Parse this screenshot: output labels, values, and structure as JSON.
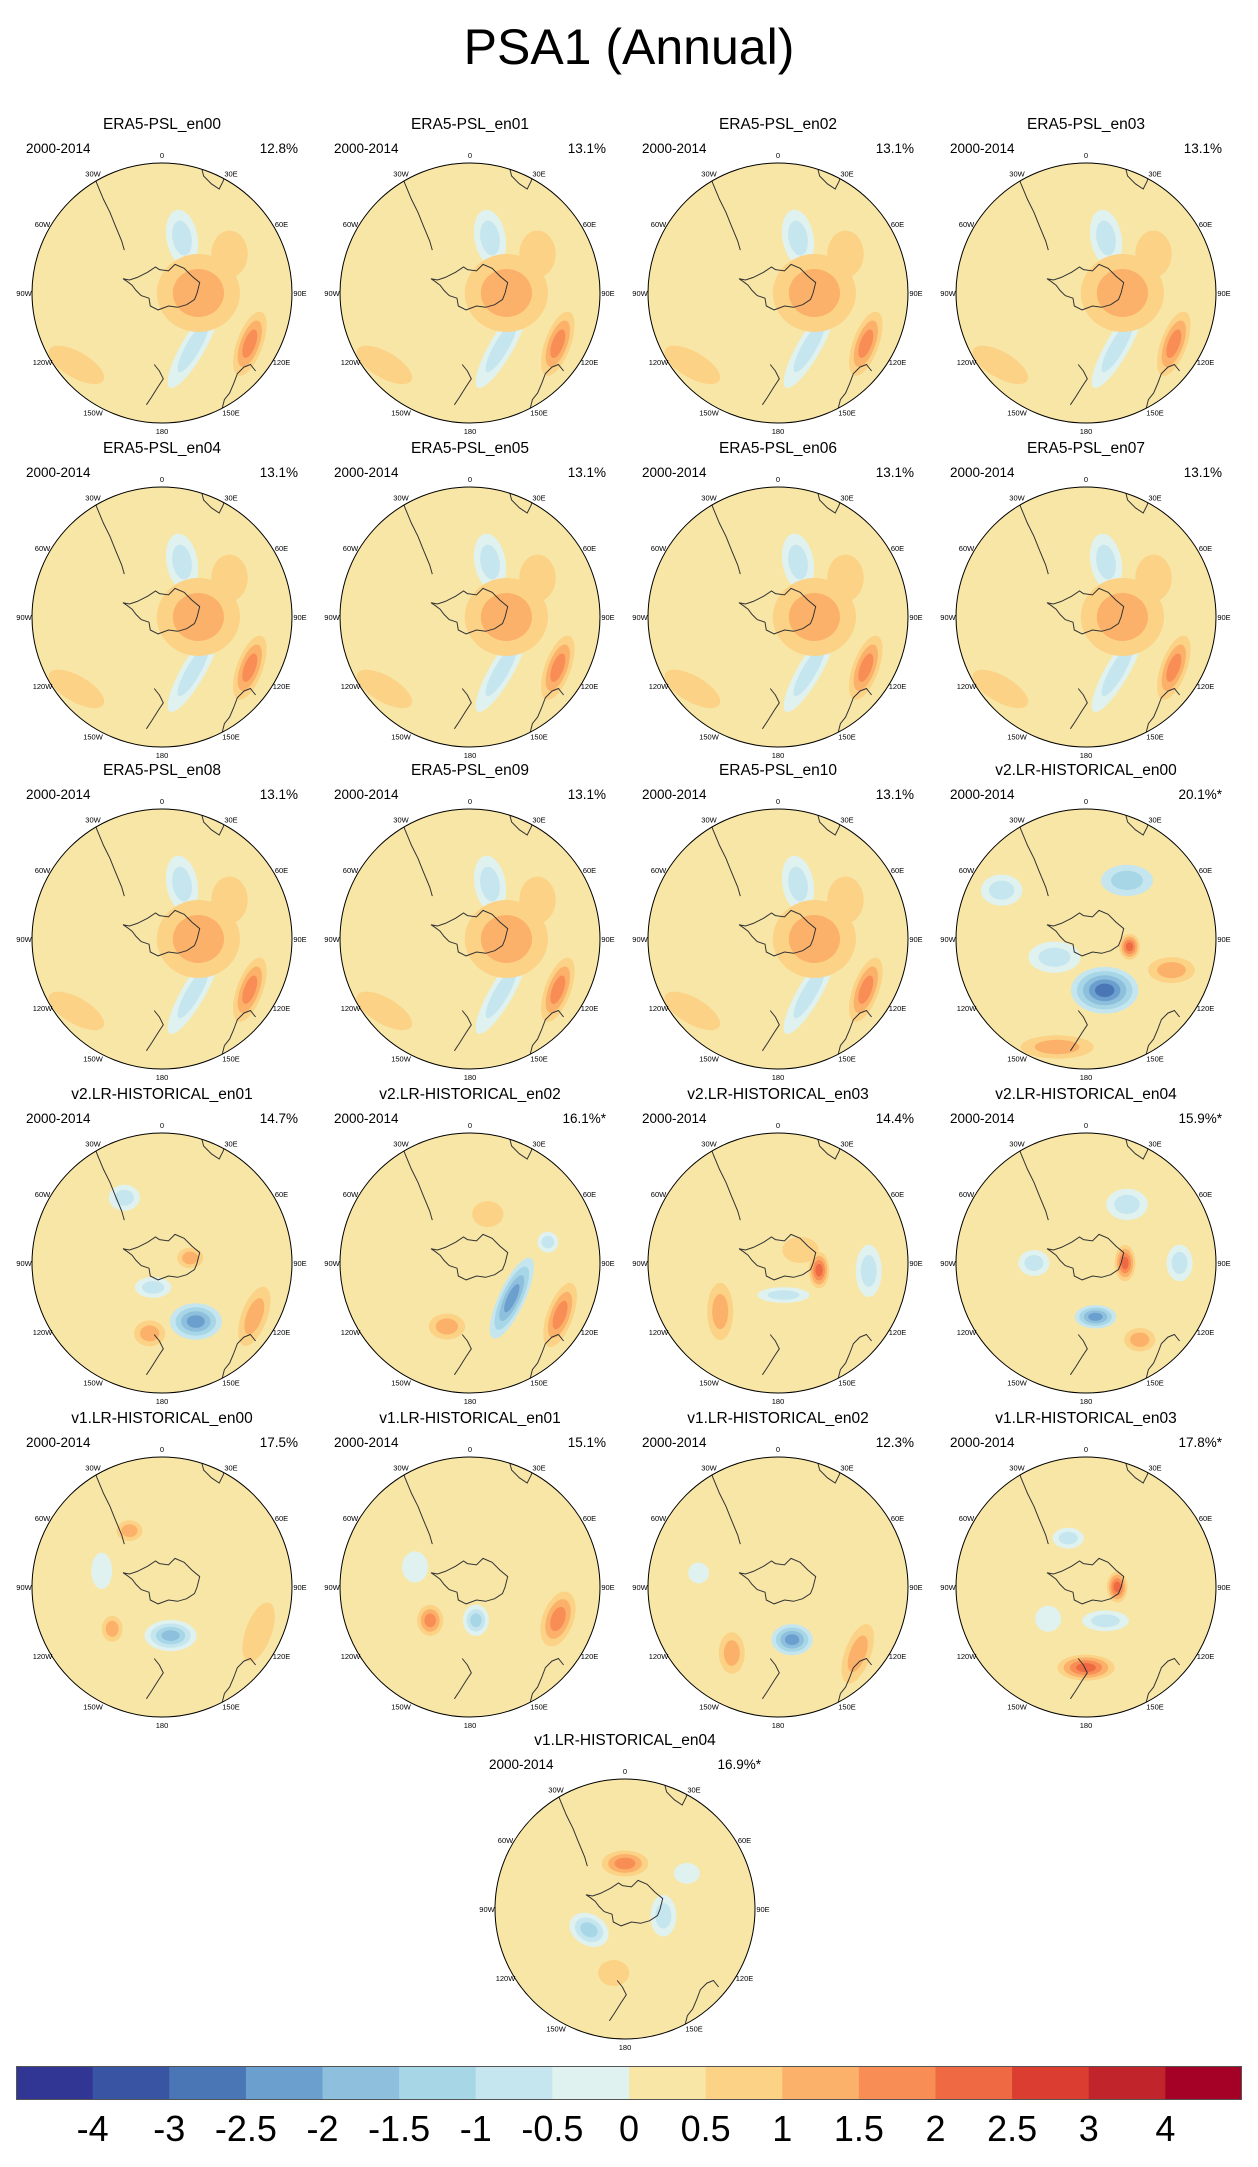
{
  "title": "PSA1 (Annual)",
  "period_label": "2000-2014",
  "lon_labels": [
    "0",
    "30E",
    "60E",
    "90E",
    "120E",
    "150E",
    "180",
    "150W",
    "120W",
    "90W",
    "60W",
    "30W"
  ],
  "chart_data": {
    "type": "map-panels",
    "projection": "south polar stereographic",
    "field": "PSA1 sea level pressure pattern (annual)",
    "panels": [
      {
        "title": "ERA5-PSL_en00",
        "period": "2000-2014",
        "variance": "12.8%",
        "pattern": "era5"
      },
      {
        "title": "ERA5-PSL_en01",
        "period": "2000-2014",
        "variance": "13.1%",
        "pattern": "era5"
      },
      {
        "title": "ERA5-PSL_en02",
        "period": "2000-2014",
        "variance": "13.1%",
        "pattern": "era5"
      },
      {
        "title": "ERA5-PSL_en03",
        "period": "2000-2014",
        "variance": "13.1%",
        "pattern": "era5"
      },
      {
        "title": "ERA5-PSL_en04",
        "period": "2000-2014",
        "variance": "13.1%",
        "pattern": "era5"
      },
      {
        "title": "ERA5-PSL_en05",
        "period": "2000-2014",
        "variance": "13.1%",
        "pattern": "era5"
      },
      {
        "title": "ERA5-PSL_en06",
        "period": "2000-2014",
        "variance": "13.1%",
        "pattern": "era5"
      },
      {
        "title": "ERA5-PSL_en07",
        "period": "2000-2014",
        "variance": "13.1%",
        "pattern": "era5"
      },
      {
        "title": "ERA5-PSL_en08",
        "period": "2000-2014",
        "variance": "13.1%",
        "pattern": "era5"
      },
      {
        "title": "ERA5-PSL_en09",
        "period": "2000-2014",
        "variance": "13.1%",
        "pattern": "era5"
      },
      {
        "title": "ERA5-PSL_en10",
        "period": "2000-2014",
        "variance": "13.1%",
        "pattern": "era5"
      },
      {
        "title": "v2.LR-HISTORICAL_en00",
        "period": "2000-2014",
        "variance": "20.1%*",
        "pattern": "v2en00"
      },
      {
        "title": "v2.LR-HISTORICAL_en01",
        "period": "2000-2014",
        "variance": "14.7%",
        "pattern": "v2en01"
      },
      {
        "title": "v2.LR-HISTORICAL_en02",
        "period": "2000-2014",
        "variance": "16.1%*",
        "pattern": "v2en02"
      },
      {
        "title": "v2.LR-HISTORICAL_en03",
        "period": "2000-2014",
        "variance": "14.4%",
        "pattern": "v2en03"
      },
      {
        "title": "v2.LR-HISTORICAL_en04",
        "period": "2000-2014",
        "variance": "15.9%*",
        "pattern": "v2en04"
      },
      {
        "title": "v1.LR-HISTORICAL_en00",
        "period": "2000-2014",
        "variance": "17.5%",
        "pattern": "v1en00"
      },
      {
        "title": "v1.LR-HISTORICAL_en01",
        "period": "2000-2014",
        "variance": "15.1%",
        "pattern": "v1en01"
      },
      {
        "title": "v1.LR-HISTORICAL_en02",
        "period": "2000-2014",
        "variance": "12.3%",
        "pattern": "v1en02"
      },
      {
        "title": "v1.LR-HISTORICAL_en03",
        "period": "2000-2014",
        "variance": "17.8%*",
        "pattern": "v1en03"
      },
      {
        "title": "v1.LR-HISTORICAL_en04",
        "period": "2000-2014",
        "variance": "16.9%*",
        "pattern": "v1en04"
      }
    ],
    "colorbar": {
      "levels": [
        "-4",
        "-3",
        "-2.5",
        "-2",
        "-1.5",
        "-1",
        "-0.5",
        "0",
        "0.5",
        "1",
        "1.5",
        "2",
        "2.5",
        "3",
        "4"
      ],
      "colors": [
        "#313695",
        "#3a54a4",
        "#4a76b5",
        "#6b9fcd",
        "#8ebfdc",
        "#a7d6e7",
        "#c6e6ef",
        "#e0f2ef",
        "#f8e6a6",
        "#fcd286",
        "#fbb169",
        "#f88d56",
        "#ef6942",
        "#db3d30",
        "#c2242b",
        "#a50026"
      ]
    }
  },
  "patterns": {
    "era5": {
      "base": 8,
      "blobs": [
        {
          "a": 120,
          "r": 0.78,
          "rx": 0.1,
          "ry": 0.26,
          "rot": 20,
          "levels": [
            9,
            10,
            11
          ]
        },
        {
          "a": 150,
          "r": 0.48,
          "rx": 0.09,
          "ry": 0.36,
          "rot": 30,
          "levels": [
            7,
            6
          ]
        },
        {
          "a": 20,
          "r": 0.45,
          "rx": 0.12,
          "ry": 0.22,
          "rot": -10,
          "levels": [
            7,
            6
          ]
        },
        {
          "a": 90,
          "r": 0.28,
          "rx": 0.32,
          "ry": 0.3,
          "rot": 0,
          "levels": [
            9,
            10
          ]
        },
        {
          "a": 60,
          "r": 0.6,
          "rx": 0.14,
          "ry": 0.18,
          "rot": 0,
          "levels": [
            9
          ]
        },
        {
          "a": 230,
          "r": 0.86,
          "rx": 0.24,
          "ry": 0.1,
          "rot": 30,
          "levels": [
            9
          ]
        }
      ]
    },
    "v2en00": {
      "base": 8,
      "blobs": [
        {
          "a": 35,
          "r": 0.55,
          "rx": 0.2,
          "ry": 0.12,
          "rot": 0,
          "levels": [
            6,
            5
          ]
        },
        {
          "a": 160,
          "r": 0.42,
          "rx": 0.26,
          "ry": 0.18,
          "rot": 0,
          "levels": [
            6,
            5,
            4,
            3,
            2
          ]
        },
        {
          "a": 100,
          "r": 0.34,
          "rx": 0.08,
          "ry": 0.1,
          "rot": 0,
          "levels": [
            9,
            10,
            11,
            12
          ]
        },
        {
          "a": 110,
          "r": 0.7,
          "rx": 0.18,
          "ry": 0.1,
          "rot": 0,
          "levels": [
            9,
            10
          ]
        },
        {
          "a": 240,
          "r": 0.28,
          "rx": 0.2,
          "ry": 0.12,
          "rot": 0,
          "levels": [
            7,
            6
          ]
        },
        {
          "a": 195,
          "r": 0.86,
          "rx": 0.28,
          "ry": 0.09,
          "rot": 0,
          "levels": [
            9,
            10
          ]
        },
        {
          "a": 300,
          "r": 0.75,
          "rx": 0.16,
          "ry": 0.12,
          "rot": 0,
          "levels": [
            7,
            6
          ]
        }
      ]
    },
    "v2en01": {
      "base": 8,
      "blobs": [
        {
          "a": 150,
          "r": 0.52,
          "rx": 0.2,
          "ry": 0.14,
          "rot": 0,
          "levels": [
            6,
            5,
            4,
            3
          ]
        },
        {
          "a": 120,
          "r": 0.82,
          "rx": 0.1,
          "ry": 0.24,
          "rot": 20,
          "levels": [
            9,
            10
          ]
        },
        {
          "a": 190,
          "r": 0.55,
          "rx": 0.12,
          "ry": 0.1,
          "rot": 0,
          "levels": [
            9,
            10
          ]
        },
        {
          "a": 80,
          "r": 0.22,
          "rx": 0.1,
          "ry": 0.08,
          "rot": 0,
          "levels": [
            9,
            10
          ]
        },
        {
          "a": 200,
          "r": 0.2,
          "rx": 0.14,
          "ry": 0.08,
          "rot": 0,
          "levels": [
            7,
            6
          ]
        },
        {
          "a": 330,
          "r": 0.58,
          "rx": 0.12,
          "ry": 0.1,
          "rot": 0,
          "levels": [
            7,
            6
          ]
        }
      ]
    },
    "v2en02": {
      "base": 8,
      "blobs": [
        {
          "a": 130,
          "r": 0.42,
          "rx": 0.1,
          "ry": 0.34,
          "rot": 25,
          "levels": [
            6,
            5,
            4,
            3
          ]
        },
        {
          "a": 120,
          "r": 0.8,
          "rx": 0.1,
          "ry": 0.26,
          "rot": 20,
          "levels": [
            9,
            10,
            11
          ]
        },
        {
          "a": 200,
          "r": 0.52,
          "rx": 0.14,
          "ry": 0.1,
          "rot": 0,
          "levels": [
            9,
            10
          ]
        },
        {
          "a": 75,
          "r": 0.62,
          "rx": 0.08,
          "ry": 0.08,
          "rot": 0,
          "levels": [
            7,
            6
          ]
        },
        {
          "a": 20,
          "r": 0.4,
          "rx": 0.12,
          "ry": 0.1,
          "rot": 0,
          "levels": [
            9
          ]
        }
      ]
    },
    "v2en03": {
      "base": 8,
      "blobs": [
        {
          "a": 100,
          "r": 0.32,
          "rx": 0.08,
          "ry": 0.14,
          "rot": 0,
          "levels": [
            9,
            10,
            11,
            12
          ]
        },
        {
          "a": 95,
          "r": 0.7,
          "rx": 0.1,
          "ry": 0.2,
          "rot": 0,
          "levels": [
            7,
            6
          ]
        },
        {
          "a": 170,
          "r": 0.25,
          "rx": 0.2,
          "ry": 0.06,
          "rot": 0,
          "levels": [
            7,
            6
          ]
        },
        {
          "a": 230,
          "r": 0.58,
          "rx": 0.1,
          "ry": 0.22,
          "rot": 0,
          "levels": [
            9,
            10
          ]
        },
        {
          "a": 60,
          "r": 0.2,
          "rx": 0.14,
          "ry": 0.1,
          "rot": 0,
          "levels": [
            9
          ]
        }
      ]
    },
    "v2en04": {
      "base": 8,
      "blobs": [
        {
          "a": 90,
          "r": 0.3,
          "rx": 0.08,
          "ry": 0.14,
          "rot": 0,
          "levels": [
            9,
            10,
            11,
            12
          ]
        },
        {
          "a": 170,
          "r": 0.42,
          "rx": 0.16,
          "ry": 0.09,
          "rot": 0,
          "levels": [
            6,
            5,
            4,
            3
          ]
        },
        {
          "a": 90,
          "r": 0.72,
          "rx": 0.1,
          "ry": 0.14,
          "rot": 0,
          "levels": [
            7,
            6
          ]
        },
        {
          "a": 35,
          "r": 0.55,
          "rx": 0.16,
          "ry": 0.12,
          "rot": 0,
          "levels": [
            7,
            6
          ]
        },
        {
          "a": 270,
          "r": 0.4,
          "rx": 0.12,
          "ry": 0.1,
          "rot": 0,
          "levels": [
            7,
            6
          ]
        },
        {
          "a": 145,
          "r": 0.72,
          "rx": 0.12,
          "ry": 0.09,
          "rot": 0,
          "levels": [
            9,
            10
          ]
        }
      ]
    },
    "v1en00": {
      "base": 8,
      "blobs": [
        {
          "a": 170,
          "r": 0.38,
          "rx": 0.2,
          "ry": 0.12,
          "rot": 0,
          "levels": [
            7,
            6,
            5,
            4
          ]
        },
        {
          "a": 285,
          "r": 0.48,
          "rx": 0.08,
          "ry": 0.14,
          "rot": 0,
          "levels": [
            7
          ]
        },
        {
          "a": 330,
          "r": 0.5,
          "rx": 0.1,
          "ry": 0.08,
          "rot": 0,
          "levels": [
            9,
            10
          ]
        },
        {
          "a": 115,
          "r": 0.82,
          "rx": 0.1,
          "ry": 0.24,
          "rot": 20,
          "levels": [
            9
          ]
        },
        {
          "a": 230,
          "r": 0.5,
          "rx": 0.08,
          "ry": 0.1,
          "rot": 0,
          "levels": [
            9,
            10
          ]
        }
      ]
    },
    "v1en01": {
      "base": 8,
      "blobs": [
        {
          "a": 170,
          "r": 0.26,
          "rx": 0.1,
          "ry": 0.12,
          "rot": 0,
          "levels": [
            7,
            6,
            5
          ]
        },
        {
          "a": 110,
          "r": 0.72,
          "rx": 0.12,
          "ry": 0.22,
          "rot": 20,
          "levels": [
            9,
            10,
            11
          ]
        },
        {
          "a": 230,
          "r": 0.4,
          "rx": 0.1,
          "ry": 0.12,
          "rot": 0,
          "levels": [
            9,
            10,
            11
          ]
        },
        {
          "a": 290,
          "r": 0.45,
          "rx": 0.1,
          "ry": 0.12,
          "rot": 0,
          "levels": [
            7
          ]
        }
      ]
    },
    "v1en02": {
      "base": 8,
      "blobs": [
        {
          "a": 165,
          "r": 0.42,
          "rx": 0.16,
          "ry": 0.12,
          "rot": 0,
          "levels": [
            6,
            5,
            4,
            3
          ]
        },
        {
          "a": 130,
          "r": 0.8,
          "rx": 0.1,
          "ry": 0.24,
          "rot": 20,
          "levels": [
            9,
            10
          ]
        },
        {
          "a": 215,
          "r": 0.62,
          "rx": 0.1,
          "ry": 0.16,
          "rot": 0,
          "levels": [
            9,
            10
          ]
        },
        {
          "a": 280,
          "r": 0.62,
          "rx": 0.08,
          "ry": 0.08,
          "rot": 0,
          "levels": [
            7
          ]
        }
      ]
    },
    "v1en03": {
      "base": 8,
      "blobs": [
        {
          "a": 90,
          "r": 0.24,
          "rx": 0.08,
          "ry": 0.12,
          "rot": 0,
          "levels": [
            9,
            10,
            11,
            12
          ]
        },
        {
          "a": 180,
          "r": 0.62,
          "rx": 0.22,
          "ry": 0.1,
          "rot": 0,
          "levels": [
            9,
            10,
            11,
            12
          ]
        },
        {
          "a": 340,
          "r": 0.4,
          "rx": 0.12,
          "ry": 0.08,
          "rot": 0,
          "levels": [
            7,
            6
          ]
        },
        {
          "a": 150,
          "r": 0.3,
          "rx": 0.18,
          "ry": 0.08,
          "rot": 0,
          "levels": [
            7,
            6
          ]
        },
        {
          "a": 230,
          "r": 0.38,
          "rx": 0.1,
          "ry": 0.1,
          "rot": 0,
          "levels": [
            7
          ]
        }
      ]
    },
    "v1en04": {
      "base": 8,
      "blobs": [
        {
          "a": 100,
          "r": 0.3,
          "rx": 0.1,
          "ry": 0.16,
          "rot": 0,
          "levels": [
            7,
            6
          ]
        },
        {
          "a": 240,
          "r": 0.32,
          "rx": 0.16,
          "ry": 0.12,
          "rot": 30,
          "levels": [
            7,
            6,
            5
          ]
        },
        {
          "a": 0,
          "r": 0.35,
          "rx": 0.18,
          "ry": 0.1,
          "rot": 0,
          "levels": [
            9,
            10,
            11
          ]
        },
        {
          "a": 190,
          "r": 0.5,
          "rx": 0.12,
          "ry": 0.1,
          "rot": 0,
          "levels": [
            9
          ]
        },
        {
          "a": 60,
          "r": 0.55,
          "rx": 0.1,
          "ry": 0.08,
          "rot": 0,
          "levels": [
            7
          ]
        }
      ]
    }
  }
}
